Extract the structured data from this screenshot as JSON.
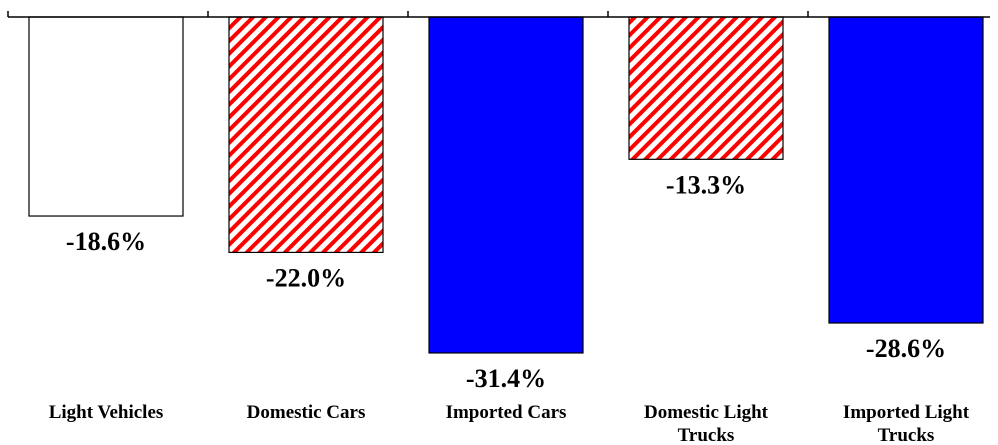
{
  "chart_data": {
    "type": "bar",
    "title": "",
    "xlabel": "",
    "ylabel": "",
    "categories": [
      "Light Vehicles",
      "Domestic Cars",
      "Imported Cars",
      "Domestic Light Trucks",
      "Imported Light Trucks"
    ],
    "category_lines": [
      [
        "Light Vehicles"
      ],
      [
        "Domestic Cars"
      ],
      [
        "Imported Cars"
      ],
      [
        "Domestic Light",
        "Trucks"
      ],
      [
        "Imported Light",
        "Trucks"
      ]
    ],
    "values": [
      -18.6,
      -22.0,
      -31.4,
      -13.3,
      -28.6
    ],
    "value_labels": [
      "-18.6%",
      "-22.0%",
      "-31.4%",
      "-13.3%",
      "-28.6%"
    ],
    "bar_styles": [
      "white",
      "red-hatch",
      "blue",
      "red-hatch",
      "blue"
    ],
    "colors": {
      "white": "#ffffff",
      "red": "#ff0000",
      "blue": "#0000ff",
      "outline": "#000000"
    },
    "axis": "x-axis at zero along top, tick marks between categories",
    "grid": false,
    "legend": "none"
  }
}
